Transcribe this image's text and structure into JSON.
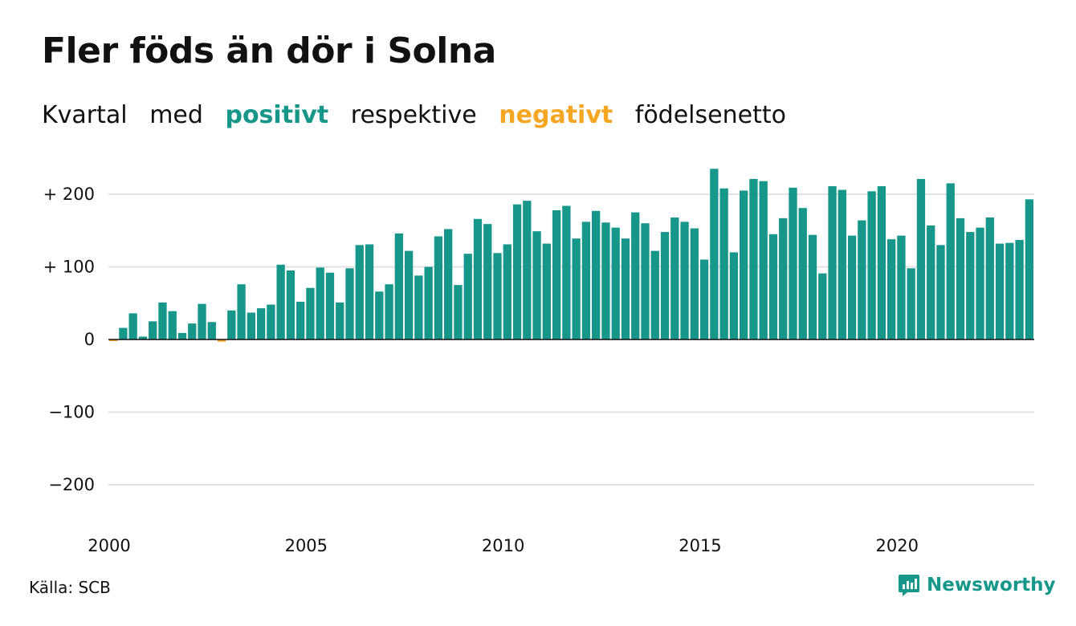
{
  "header": {
    "title": "Fler föds än dör i Solna",
    "subtitle": {
      "w1": "Kvartal",
      "w2": "med",
      "positive": "positivt",
      "w3": "respektive",
      "negative": "negativt",
      "w4": "födelsenetto"
    }
  },
  "footer": {
    "source": "Källa: SCB",
    "brand": "Newsworthy"
  },
  "colors": {
    "positive": "#16978A",
    "negative": "#F5A623",
    "grid": "#e2e2e2",
    "text": "#111111"
  },
  "chart_data": {
    "type": "bar",
    "x_start": "2000 Q1",
    "frequency": "quarterly",
    "values": [
      -2,
      16,
      36,
      4,
      25,
      51,
      39,
      9,
      22,
      49,
      24,
      -3,
      40,
      76,
      37,
      43,
      48,
      103,
      95,
      52,
      71,
      99,
      92,
      51,
      98,
      130,
      131,
      66,
      76,
      146,
      122,
      88,
      100,
      142,
      152,
      75,
      118,
      166,
      159,
      119,
      131,
      186,
      191,
      149,
      132,
      178,
      184,
      139,
      162,
      177,
      161,
      154,
      139,
      175,
      160,
      122,
      148,
      168,
      162,
      153,
      110,
      235,
      208,
      120,
      205,
      221,
      218,
      145,
      167,
      209,
      181,
      144,
      91,
      211,
      206,
      143,
      164,
      204,
      211,
      138,
      143,
      98,
      221,
      157,
      130,
      215,
      167,
      148,
      154,
      168,
      132,
      133,
      137,
      193
    ],
    "ylim": [
      -240,
      240
    ],
    "y_ticks": [
      {
        "value": 200,
        "label": "+ 200"
      },
      {
        "value": 100,
        "label": "+ 100"
      },
      {
        "value": 0,
        "label": "0"
      },
      {
        "value": -100,
        "label": "−100"
      },
      {
        "value": -200,
        "label": "−200"
      }
    ],
    "x_ticks": [
      {
        "value": 2000,
        "label": "2000"
      },
      {
        "value": 2005,
        "label": "2005"
      },
      {
        "value": 2010,
        "label": "2010"
      },
      {
        "value": 2015,
        "label": "2015"
      },
      {
        "value": 2020,
        "label": "2020"
      }
    ],
    "grid": true
  }
}
